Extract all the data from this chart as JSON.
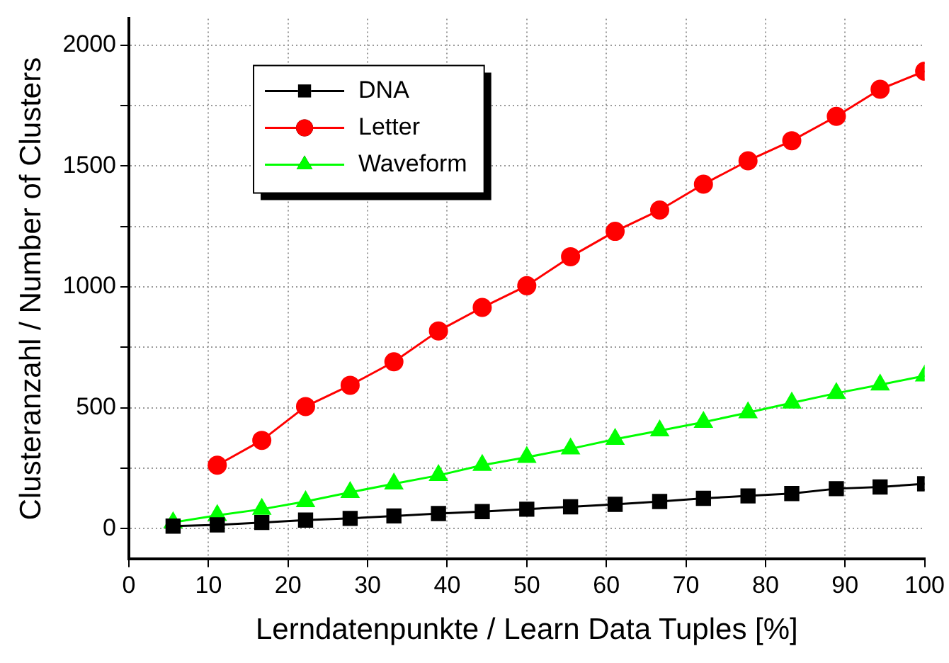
{
  "chart_data": {
    "type": "line",
    "xlabel": "Lerndatenpunkte / Learn Data Tuples [%]",
    "ylabel": "Clusteranzahl / Number of Clusters",
    "xlim": [
      0,
      100
    ],
    "xticks": [
      0,
      10,
      20,
      30,
      40,
      50,
      60,
      70,
      80,
      90,
      100
    ],
    "ylim": [
      -125,
      2110
    ],
    "yticks": [
      0,
      {
        "value": 250,
        "label": null
      },
      500,
      {
        "value": 750,
        "label": null
      },
      1000,
      {
        "value": 1250,
        "label": null
      },
      1500,
      {
        "value": 1750,
        "label": null
      },
      2000
    ],
    "grid": true,
    "legend": "top left",
    "series": [
      {
        "name": "DNA",
        "color": "#000000",
        "marker": "square",
        "x": [
          5.55,
          11.1,
          16.7,
          22.2,
          27.8,
          33.3,
          38.9,
          44.4,
          50,
          55.5,
          61.1,
          66.7,
          72.2,
          77.8,
          83.3,
          88.9,
          94.4,
          100
        ],
        "values": [
          10,
          15,
          25,
          35,
          42,
          52,
          62,
          70,
          80,
          90,
          100,
          112,
          125,
          135,
          145,
          165,
          172,
          185
        ]
      },
      {
        "name": "Letter",
        "color": "#ff0000",
        "marker": "circle",
        "x": [
          11.1,
          16.7,
          22.2,
          27.8,
          33.3,
          38.9,
          44.4,
          50,
          55.5,
          61.1,
          66.7,
          72.2,
          77.8,
          83.3,
          88.9,
          94.4,
          100
        ],
        "values": [
          262,
          365,
          505,
          593,
          690,
          818,
          915,
          1005,
          1125,
          1230,
          1318,
          1425,
          1522,
          1605,
          1706,
          1818,
          1893
        ]
      },
      {
        "name": "Waveform",
        "color": "#00ff00",
        "marker": "triangle",
        "x": [
          5.55,
          11.1,
          16.7,
          22.2,
          27.8,
          33.3,
          38.9,
          44.4,
          50,
          55.5,
          61.1,
          66.7,
          72.2,
          77.8,
          83.3,
          88.9,
          94.4,
          100
        ],
        "values": [
          25,
          55,
          80,
          112,
          150,
          185,
          220,
          262,
          295,
          330,
          370,
          405,
          440,
          480,
          520,
          560,
          595,
          632
        ]
      }
    ]
  }
}
